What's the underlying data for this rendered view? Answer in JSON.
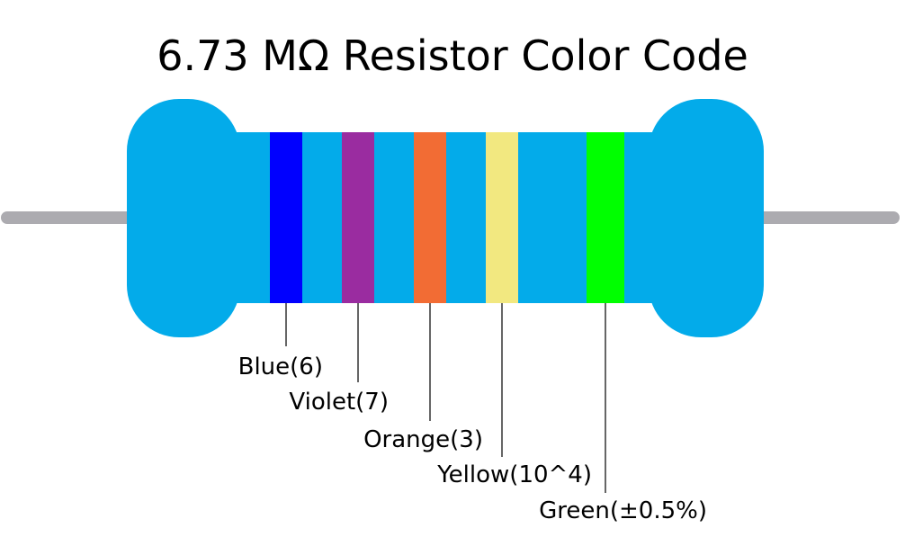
{
  "title": "6.73 MΩ Resistor Color Code",
  "colors": {
    "body": "#03abea",
    "lead": "#acabb0",
    "leader_line": "#000000",
    "background": "#ffffff"
  },
  "bands": [
    {
      "name": "blue",
      "label": "Blue(6)",
      "color": "#0000ff"
    },
    {
      "name": "violet",
      "label": "Violet(7)",
      "color": "#9a2ca0"
    },
    {
      "name": "orange",
      "label": "Orange(3)",
      "color": "#f26c34"
    },
    {
      "name": "yellow",
      "label": "Yellow(10^4)",
      "color": "#f2e880"
    },
    {
      "name": "green",
      "label": "Green(±0.5%)",
      "color": "#00ff00"
    }
  ]
}
